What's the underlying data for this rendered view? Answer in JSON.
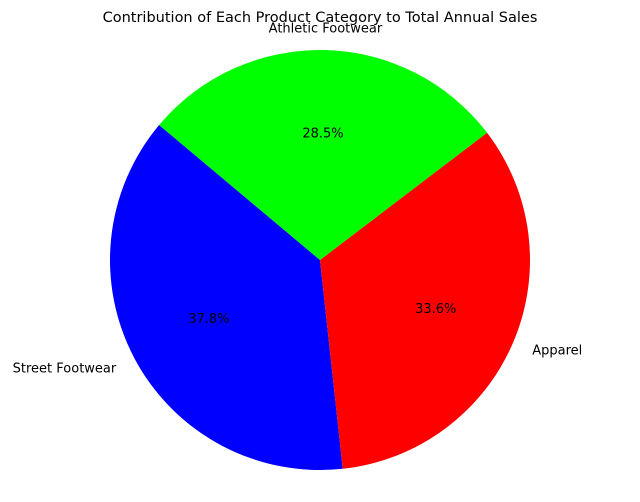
{
  "chart_data": {
    "type": "pie",
    "title": "Contribution of Each Product Category to Total Annual Sales",
    "slices": [
      {
        "label": "Street Footwear",
        "value": 37.8,
        "pct_label": "37.8%",
        "color": "#0000ff"
      },
      {
        "label": "Apparel",
        "value": 33.6,
        "pct_label": "33.6%",
        "color": "#ff0000"
      },
      {
        "label": "Athletic Footwear",
        "value": 28.5,
        "pct_label": "28.5%",
        "color": "#00ff00"
      }
    ],
    "start_angle_deg": 140,
    "direction": "counterclockwise",
    "legend": "none"
  }
}
